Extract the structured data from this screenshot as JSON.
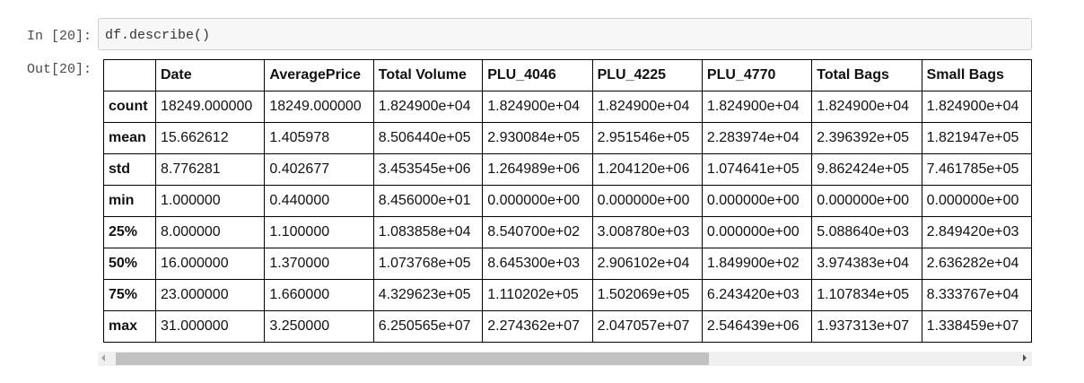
{
  "cell": {
    "in_prompt": "In [20]:",
    "code": "df.describe()",
    "out_prompt": "Out[20]:"
  },
  "table": {
    "columns": [
      "",
      "Date",
      "AveragePrice",
      "Total Volume",
      "PLU_4046",
      "PLU_4225",
      "PLU_4770",
      "Total Bags",
      "Small Bags"
    ],
    "rows": [
      {
        "label": "count",
        "values": [
          "18249.000000",
          "18249.000000",
          "1.824900e+04",
          "1.824900e+04",
          "1.824900e+04",
          "1.824900e+04",
          "1.824900e+04",
          "1.824900e+04"
        ]
      },
      {
        "label": "mean",
        "values": [
          "15.662612",
          "1.405978",
          "8.506440e+05",
          "2.930084e+05",
          "2.951546e+05",
          "2.283974e+04",
          "2.396392e+05",
          "1.821947e+05"
        ]
      },
      {
        "label": "std",
        "values": [
          "8.776281",
          "0.402677",
          "3.453545e+06",
          "1.264989e+06",
          "1.204120e+06",
          "1.074641e+05",
          "9.862424e+05",
          "7.461785e+05"
        ]
      },
      {
        "label": "min",
        "values": [
          "1.000000",
          "0.440000",
          "8.456000e+01",
          "0.000000e+00",
          "0.000000e+00",
          "0.000000e+00",
          "0.000000e+00",
          "0.000000e+00"
        ]
      },
      {
        "label": "25%",
        "values": [
          "8.000000",
          "1.100000",
          "1.083858e+04",
          "8.540700e+02",
          "3.008780e+03",
          "0.000000e+00",
          "5.088640e+03",
          "2.849420e+03"
        ]
      },
      {
        "label": "50%",
        "values": [
          "16.000000",
          "1.370000",
          "1.073768e+05",
          "8.645300e+03",
          "2.906102e+04",
          "1.849900e+02",
          "3.974383e+04",
          "2.636282e+04"
        ]
      },
      {
        "label": "75%",
        "values": [
          "23.000000",
          "1.660000",
          "4.329623e+05",
          "1.110202e+05",
          "1.502069e+05",
          "6.243420e+03",
          "1.107834e+05",
          "8.333767e+04"
        ]
      },
      {
        "label": "max",
        "values": [
          "31.000000",
          "3.250000",
          "6.250565e+07",
          "2.274362e+07",
          "2.047057e+07",
          "2.546439e+06",
          "1.937313e+07",
          "1.338459e+07"
        ]
      }
    ]
  },
  "scrollbar": {
    "left_icon": "scroll-left-arrow-icon",
    "right_icon": "scroll-right-arrow-icon",
    "thumb_fraction": 0.66
  }
}
